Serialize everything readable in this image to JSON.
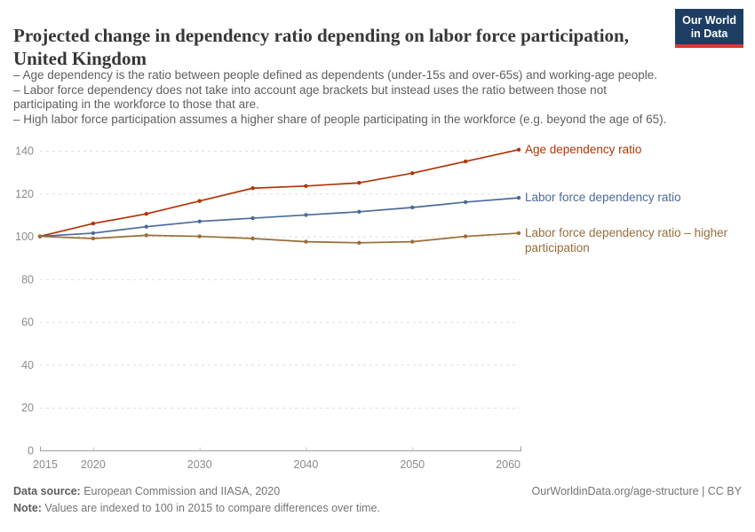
{
  "header": {
    "title": "Projected change in dependency ratio depending on labor force participation, United Kingdom",
    "logo": {
      "line1": "Our World",
      "line2": "in Data",
      "bg_color": "#1d3d63",
      "accent_color": "#dc3932"
    }
  },
  "subtitle": {
    "line1": "– Age dependency is the ratio between people defined as dependents (under-15s and over-65s) and working-age people.",
    "line2": "– Labor force dependency does not take into account age brackets but instead uses the ratio between those not participating in the workforce to those that are.",
    "line3": "– High labor force participation assumes a higher share of people participating in the workforce (e.g. beyond the age of 65)."
  },
  "chart_data": {
    "type": "line",
    "title": "Projected change in dependency ratio depending on labor force participation, United Kingdom",
    "xlabel": "",
    "ylabel": "",
    "x": [
      2015,
      2020,
      2025,
      2030,
      2035,
      2040,
      2045,
      2050,
      2055,
      2060
    ],
    "series": [
      {
        "name": "Age dependency ratio",
        "color": "#b13507",
        "values": [
          100,
          106,
          110.5,
          116.5,
          122.5,
          123.5,
          125,
          129.5,
          135,
          140.5
        ]
      },
      {
        "name": "Labor force dependency ratio",
        "color": "#4c6a9c",
        "values": [
          100,
          101.5,
          104.5,
          107,
          108.5,
          110,
          111.5,
          113.5,
          116,
          118
        ]
      },
      {
        "name": "Labor force dependency ratio – higher participation",
        "color": "#996d39",
        "values": [
          100,
          99,
          100.5,
          100,
          99,
          97.5,
          97,
          97.5,
          100,
          101.5
        ]
      }
    ],
    "ylim": [
      0,
      140
    ],
    "yticks": [
      0,
      20,
      40,
      60,
      80,
      100,
      120,
      140
    ],
    "xticks": [
      2015,
      2020,
      2030,
      2040,
      2050,
      2060
    ],
    "grid": "horizontal dashed",
    "legend_position": "labels at right end of each line",
    "axis_color": "#9e9e9e",
    "grid_color": "#dedede",
    "tick_label_color": "#8b8b8b"
  },
  "footer": {
    "source_label": "Data source:",
    "source_text": " European Commission and IIASA, 2020",
    "note_label": "Note:",
    "note_text": " Values are indexed to 100 in 2015 to compare differences over time.",
    "link_text": "OurWorldinData.org/age-structure | CC BY"
  }
}
